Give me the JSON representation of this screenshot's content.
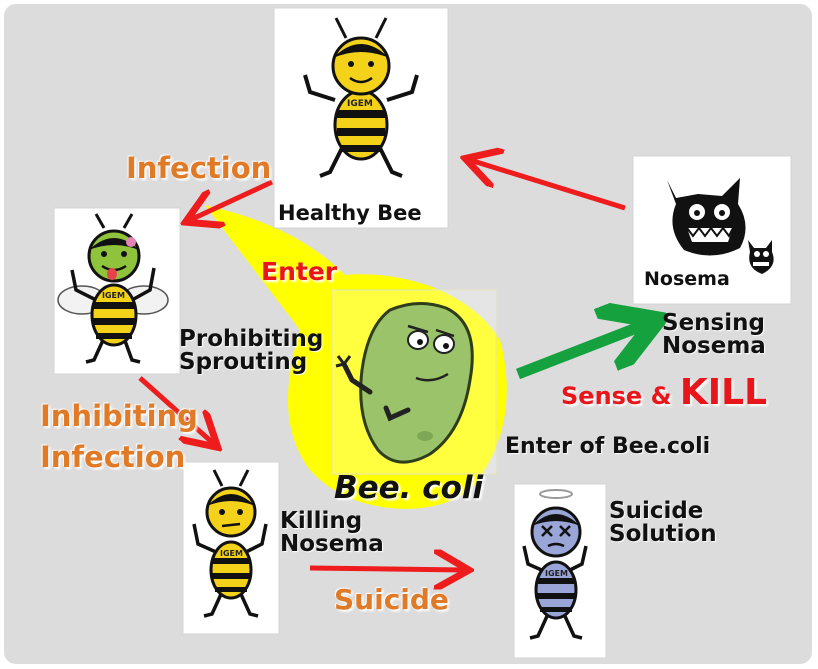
{
  "nodes": {
    "healthy_bee": "Healthy Bee",
    "nosema": "Nosema",
    "sensing_nosema": [
      "Sensing",
      "Nosema"
    ],
    "prohibiting_sprouting": [
      "Prohibiting",
      "Sprouting"
    ],
    "killing_nosema": [
      "Killing",
      "Nosema"
    ],
    "suicide_solution": [
      "Suicide",
      "Solution"
    ],
    "enter_of_bee_coli": "Enter of Bee.coli",
    "bee_coli": "Bee. coli",
    "bee_shirt": "IGEM"
  },
  "edges": {
    "infection": "Infection",
    "inhibiting_infection": [
      "Inhibiting",
      "Infection"
    ],
    "suicide": "Suicide",
    "enter": "Enter",
    "sense_and": "Sense & ",
    "kill": "KILL"
  },
  "colors": {
    "background": "#dcdcdc",
    "beam": "#ffff00",
    "edge_label": "#e07a26",
    "red_arrow": "#ee1c1c",
    "green_arrow": "#16a13f",
    "bee_yellow": "#f5d21a",
    "zombie_green": "#8fc33c",
    "dead_bee_blue": "#9aa6d8",
    "bacterium": "#9bc46a"
  }
}
